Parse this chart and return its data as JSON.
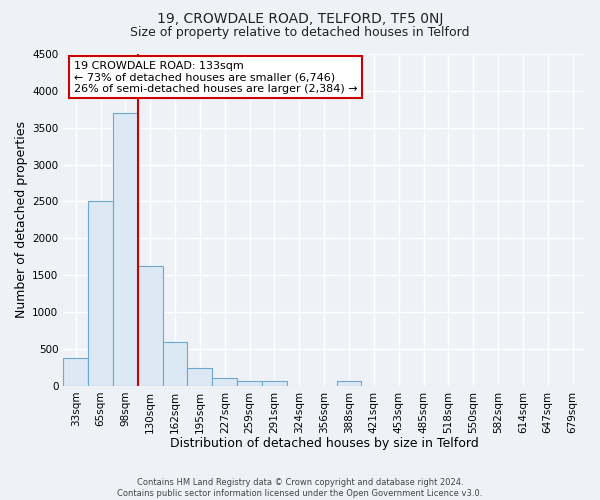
{
  "title": "19, CROWDALE ROAD, TELFORD, TF5 0NJ",
  "subtitle": "Size of property relative to detached houses in Telford",
  "xlabel": "Distribution of detached houses by size in Telford",
  "ylabel": "Number of detached properties",
  "footer_lines": [
    "Contains HM Land Registry data © Crown copyright and database right 2024.",
    "Contains public sector information licensed under the Open Government Licence v3.0."
  ],
  "bin_labels": [
    "33sqm",
    "65sqm",
    "98sqm",
    "130sqm",
    "162sqm",
    "195sqm",
    "227sqm",
    "259sqm",
    "291sqm",
    "324sqm",
    "356sqm",
    "388sqm",
    "421sqm",
    "453sqm",
    "485sqm",
    "518sqm",
    "550sqm",
    "582sqm",
    "614sqm",
    "647sqm",
    "679sqm"
  ],
  "bar_values": [
    375,
    2500,
    3700,
    1625,
    600,
    240,
    110,
    60,
    60,
    0,
    0,
    60,
    0,
    0,
    0,
    0,
    0,
    0,
    0,
    0,
    0
  ],
  "bar_color": "#dce8f3",
  "bar_edge_color": "#6ea8d0",
  "vline_x_idx": 3,
  "vline_color": "#cc0000",
  "ylim": [
    0,
    4500
  ],
  "yticks": [
    0,
    500,
    1000,
    1500,
    2000,
    2500,
    3000,
    3500,
    4000,
    4500
  ],
  "annotation_box_text": "19 CROWDALE ROAD: 133sqm\n← 73% of detached houses are smaller (6,746)\n26% of semi-detached houses are larger (2,384) →",
  "annotation_box_color": "#cc0000",
  "bg_color": "#eef2f7",
  "grid_color": "#ffffff",
  "title_fontsize": 10,
  "subtitle_fontsize": 9,
  "axis_label_fontsize": 9,
  "tick_fontsize": 7.5,
  "footer_fontsize": 6
}
